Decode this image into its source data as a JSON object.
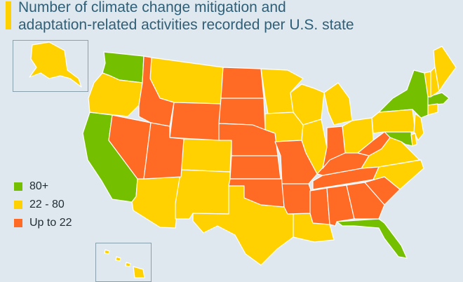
{
  "title_line1": "Number of climate change mitigation and",
  "title_line2": "adaptation-related activities recorded per U.S. state",
  "colors": {
    "high": "#74bf00",
    "mid": "#ffd100",
    "low": "#ff6a25",
    "background": "#dfe8ef",
    "border": "#ffffff"
  },
  "legend": [
    {
      "label": "80+",
      "color_key": "high"
    },
    {
      "label": "22 - 80",
      "color_key": "mid"
    },
    {
      "label": "Up to 22",
      "color_key": "low"
    }
  ],
  "states": [
    {
      "name": "Washington",
      "level": "high"
    },
    {
      "name": "California",
      "level": "high"
    },
    {
      "name": "New York",
      "level": "high"
    },
    {
      "name": "Massachusetts",
      "level": "high"
    },
    {
      "name": "Maryland",
      "level": "high"
    },
    {
      "name": "Florida",
      "level": "high"
    },
    {
      "name": "Oregon",
      "level": "mid"
    },
    {
      "name": "Montana",
      "level": "mid"
    },
    {
      "name": "Colorado",
      "level": "mid"
    },
    {
      "name": "Arizona",
      "level": "mid"
    },
    {
      "name": "New Mexico",
      "level": "mid"
    },
    {
      "name": "Texas",
      "level": "mid"
    },
    {
      "name": "Minnesota",
      "level": "mid"
    },
    {
      "name": "Iowa",
      "level": "mid"
    },
    {
      "name": "Wisconsin",
      "level": "mid"
    },
    {
      "name": "Illinois",
      "level": "mid"
    },
    {
      "name": "Michigan",
      "level": "mid"
    },
    {
      "name": "Ohio",
      "level": "mid"
    },
    {
      "name": "Pennsylvania",
      "level": "mid"
    },
    {
      "name": "Virginia",
      "level": "mid"
    },
    {
      "name": "North Carolina",
      "level": "mid"
    },
    {
      "name": "Louisiana",
      "level": "mid"
    },
    {
      "name": "Maine",
      "level": "mid"
    },
    {
      "name": "Vermont",
      "level": "mid"
    },
    {
      "name": "New Hampshire",
      "level": "mid"
    },
    {
      "name": "New Jersey",
      "level": "mid"
    },
    {
      "name": "Connecticut",
      "level": "mid"
    },
    {
      "name": "Delaware",
      "level": "mid"
    },
    {
      "name": "Alaska",
      "level": "mid"
    },
    {
      "name": "Hawaii",
      "level": "mid"
    },
    {
      "name": "Idaho",
      "level": "low"
    },
    {
      "name": "Nevada",
      "level": "low"
    },
    {
      "name": "Utah",
      "level": "low"
    },
    {
      "name": "Wyoming",
      "level": "low"
    },
    {
      "name": "North Dakota",
      "level": "low"
    },
    {
      "name": "South Dakota",
      "level": "low"
    },
    {
      "name": "Nebraska",
      "level": "low"
    },
    {
      "name": "Kansas",
      "level": "low"
    },
    {
      "name": "Oklahoma",
      "level": "low"
    },
    {
      "name": "Missouri",
      "level": "low"
    },
    {
      "name": "Arkansas",
      "level": "low"
    },
    {
      "name": "Mississippi",
      "level": "low"
    },
    {
      "name": "Alabama",
      "level": "low"
    },
    {
      "name": "Georgia",
      "level": "low"
    },
    {
      "name": "South Carolina",
      "level": "low"
    },
    {
      "name": "Tennessee",
      "level": "low"
    },
    {
      "name": "Kentucky",
      "level": "low"
    },
    {
      "name": "Indiana",
      "level": "low"
    },
    {
      "name": "West Virginia",
      "level": "low"
    }
  ]
}
